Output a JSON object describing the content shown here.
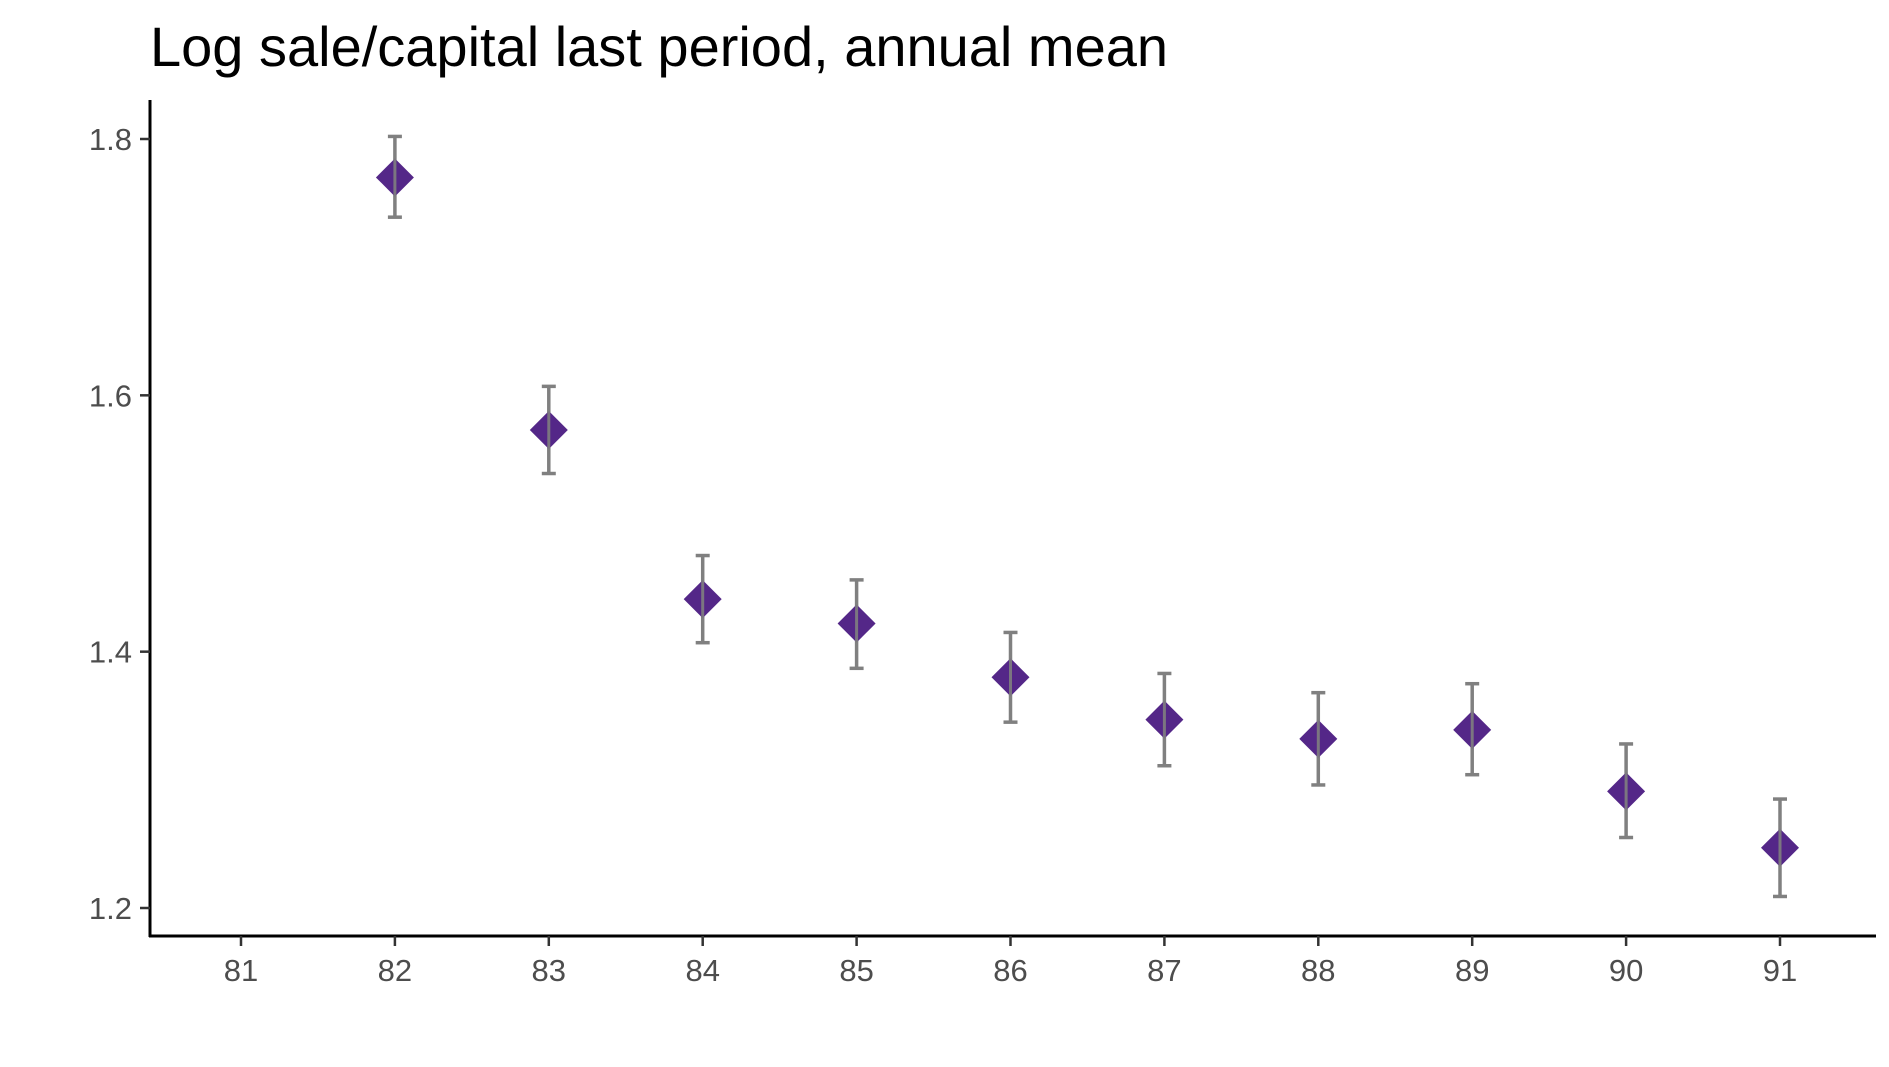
{
  "chart_data": {
    "type": "scatter",
    "title": "Log sale/capital last period, annual mean",
    "xlabel": "",
    "ylabel": "",
    "x_ticks": [
      "81",
      "82",
      "83",
      "84",
      "85",
      "86",
      "87",
      "88",
      "89",
      "90",
      "91"
    ],
    "y_ticks": [
      "1.2",
      "1.4",
      "1.6",
      "1.8"
    ],
    "xlim": [
      80.4,
      91.6
    ],
    "ylim": [
      1.18,
      1.83
    ],
    "grid": false,
    "marker": "diamond",
    "series": [
      {
        "name": "annual mean",
        "color": "#542788",
        "error_bar_color": "#808080",
        "points": [
          {
            "x": 82,
            "y": 1.77,
            "lower": 1.739,
            "upper": 1.802
          },
          {
            "x": 83,
            "y": 1.573,
            "lower": 1.539,
            "upper": 1.607
          },
          {
            "x": 84,
            "y": 1.441,
            "lower": 1.407,
            "upper": 1.475
          },
          {
            "x": 85,
            "y": 1.422,
            "lower": 1.387,
            "upper": 1.456
          },
          {
            "x": 86,
            "y": 1.38,
            "lower": 1.345,
            "upper": 1.415
          },
          {
            "x": 87,
            "y": 1.347,
            "lower": 1.311,
            "upper": 1.383
          },
          {
            "x": 88,
            "y": 1.332,
            "lower": 1.296,
            "upper": 1.368
          },
          {
            "x": 89,
            "y": 1.339,
            "lower": 1.304,
            "upper": 1.375
          },
          {
            "x": 90,
            "y": 1.291,
            "lower": 1.255,
            "upper": 1.328
          },
          {
            "x": 91,
            "y": 1.247,
            "lower": 1.209,
            "upper": 1.285
          }
        ]
      }
    ]
  }
}
